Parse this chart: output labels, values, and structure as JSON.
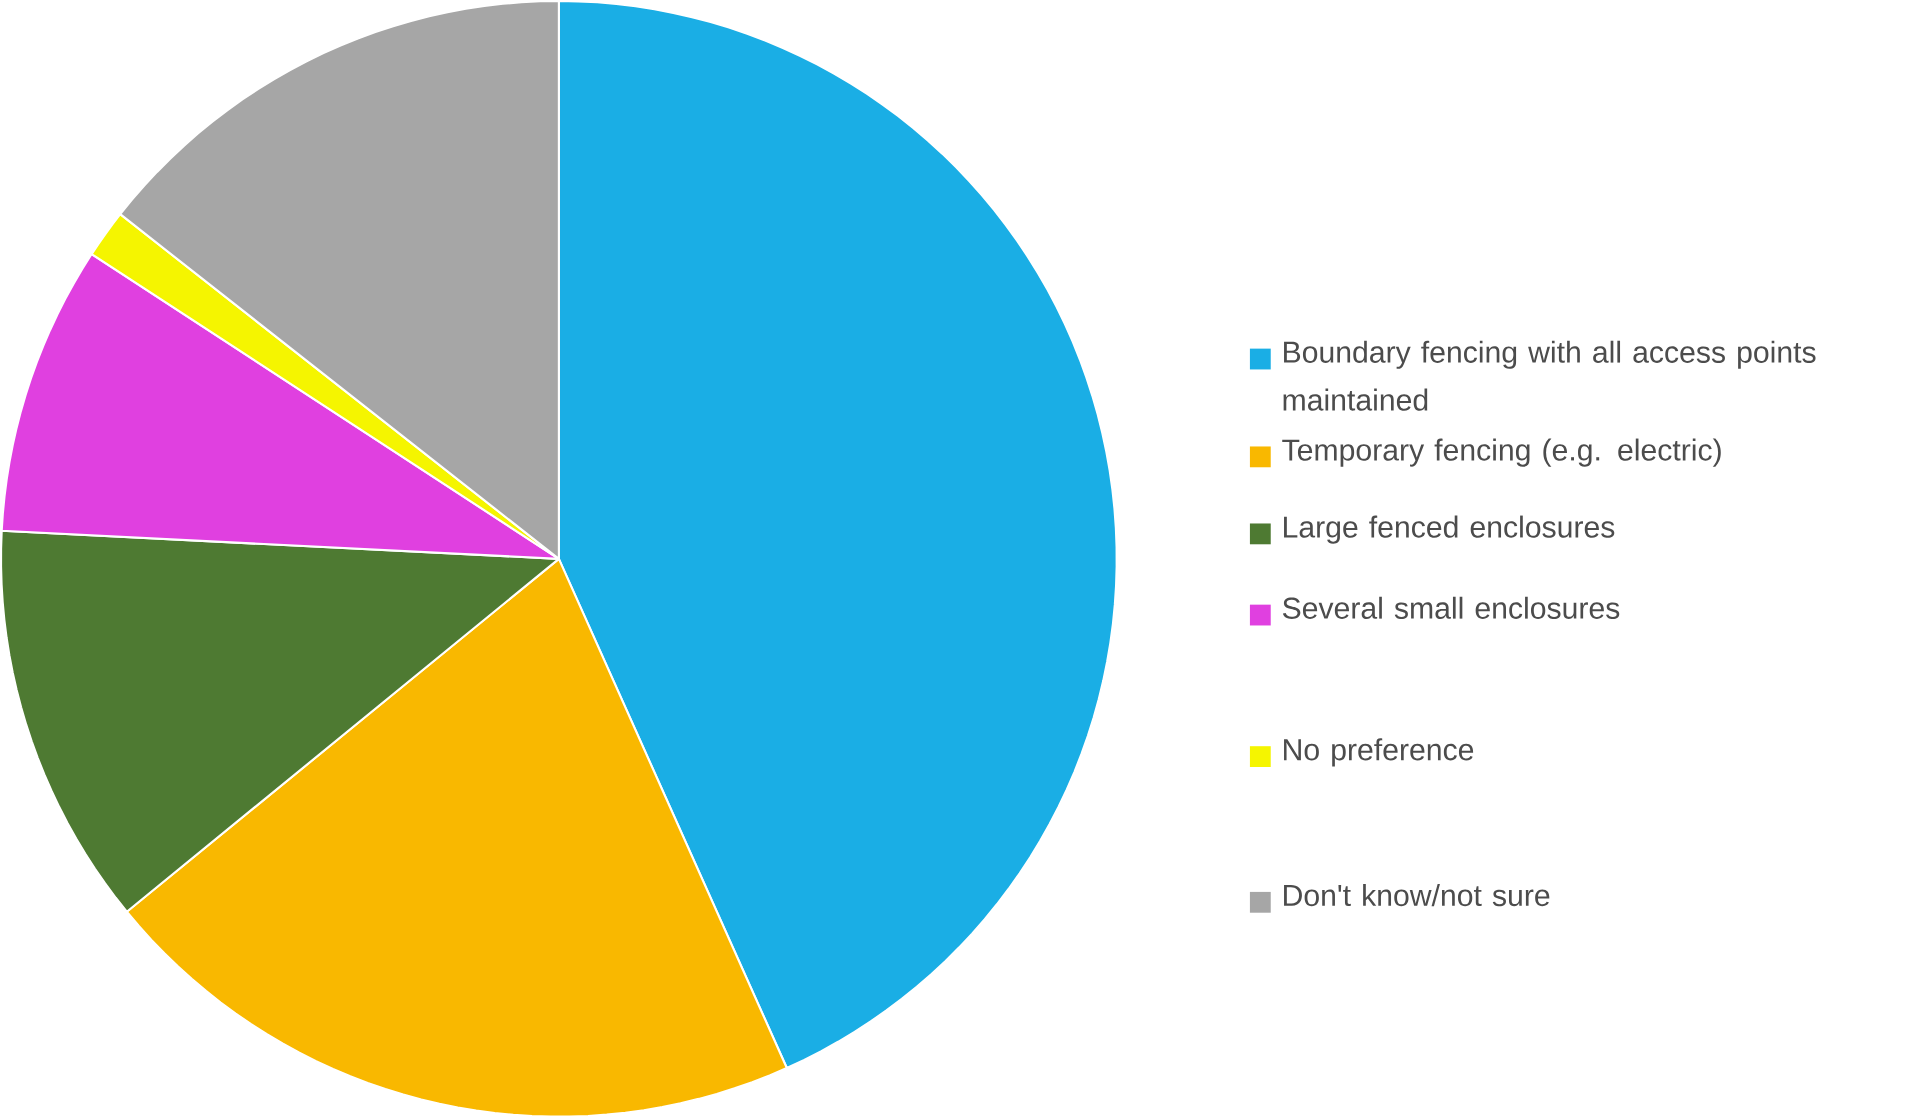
{
  "chart_data": {
    "type": "pie",
    "categories": [
      "Boundary fencing with all access points maintained",
      "Temporary fencing (e.g. electric)",
      "Large fenced enclosures",
      "Several small enclosures",
      "No preference",
      "Don't know/not sure"
    ],
    "values": [
      43.3,
      20.8,
      11.7,
      8.4,
      1.4,
      14.4
    ],
    "colors": [
      "#1aaee5",
      "#f9b800",
      "#4e7a32",
      "#e040e0",
      "#f5f500",
      "#a6a6a6"
    ],
    "legend": "right"
  }
}
